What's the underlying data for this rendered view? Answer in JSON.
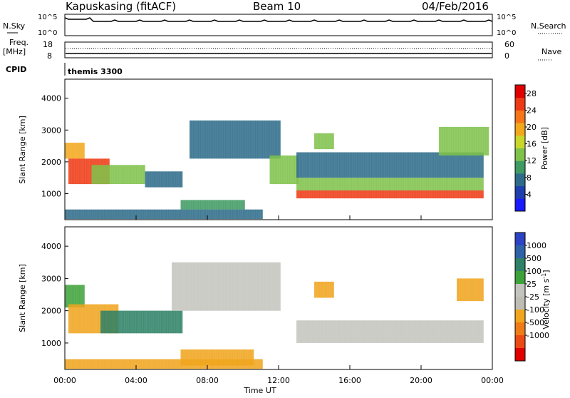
{
  "header": {
    "radar": "Kapuskasing (fitACF)",
    "beam": "Beam 10",
    "date": "04/Feb/2016"
  },
  "top_panels": {
    "nsky_label": "N.Sky",
    "nsky_ticks": [
      "10^5",
      "10^0"
    ],
    "nsearch_label": "N.Search",
    "nsearch_ticks": [
      "10^5",
      "10^0"
    ],
    "freq_label_1": "Freq.",
    "freq_label_2": "[MHz]",
    "freq_ticks": [
      "18",
      "8"
    ],
    "nave_label": "Nave",
    "nave_ticks": [
      "60",
      "0"
    ],
    "cpid_label": "CPID",
    "cpid_value": "themis 3300"
  },
  "colors": {
    "power_scale": [
      "#1a1aff",
      "#1f3fae",
      "#2e6b8a",
      "#3f9a63",
      "#7fc24a",
      "#c9d62a",
      "#f2a81c",
      "#f57518",
      "#ee3a14",
      "#e00000"
    ],
    "velocity_scale": [
      "#2b43c4",
      "#2e62a8",
      "#2e8166",
      "#3ea23a",
      "#c4c4be",
      "#bdbdb6",
      "#f0a51d",
      "#ef7d17",
      "#ec4a14",
      "#e00000"
    ]
  },
  "chart_data": [
    {
      "type": "heatmap",
      "name": "Power",
      "ylabel": "Slant Range [km]",
      "yticks": [
        1000,
        2000,
        3000,
        4000
      ],
      "ylim": [
        180,
        4600
      ],
      "x_domain_hours": [
        0,
        24
      ],
      "colorbar_label": "Power [dB]",
      "colorbar_ticks": [
        4,
        8,
        12,
        16,
        20,
        24,
        28
      ],
      "colorbar_range": [
        0,
        30
      ],
      "regions": [
        {
          "t": [
            0.0,
            1.0
          ],
          "r": [
            2100,
            2600
          ],
          "v": 20
        },
        {
          "t": [
            0.2,
            2.5
          ],
          "r": [
            1300,
            2100
          ],
          "v": 26
        },
        {
          "t": [
            1.5,
            4.5
          ],
          "r": [
            1300,
            1900
          ],
          "v": 14
        },
        {
          "t": [
            4.5,
            6.5
          ],
          "r": [
            1200,
            1700
          ],
          "v": 8
        },
        {
          "t": [
            6.5,
            10.0
          ],
          "r": [
            500,
            800
          ],
          "v": 10
        },
        {
          "t": [
            7.0,
            12.0
          ],
          "r": [
            2100,
            3300
          ],
          "v": 6
        },
        {
          "t": [
            11.5,
            13.0
          ],
          "r": [
            1300,
            2200
          ],
          "v": 14
        },
        {
          "t": [
            13.0,
            23.5
          ],
          "r": [
            850,
            1100
          ],
          "v": 26
        },
        {
          "t": [
            13.0,
            23.5
          ],
          "r": [
            1100,
            1500
          ],
          "v": 14
        },
        {
          "t": [
            13.0,
            23.5
          ],
          "r": [
            1500,
            2300
          ],
          "v": 8
        },
        {
          "t": [
            14.0,
            15.0
          ],
          "r": [
            2400,
            2900
          ],
          "v": 14
        },
        {
          "t": [
            21.0,
            23.8
          ],
          "r": [
            2200,
            3100
          ],
          "v": 12
        },
        {
          "t": [
            0.0,
            11.0
          ],
          "r": [
            200,
            500
          ],
          "v": 6
        }
      ]
    },
    {
      "type": "heatmap",
      "name": "Velocity",
      "ylabel": "Slant Range [km]",
      "yticks": [
        1000,
        2000,
        3000,
        4000
      ],
      "ylim": [
        180,
        4600
      ],
      "x_domain_hours": [
        0,
        24
      ],
      "xlabel": "Time UT",
      "xticks": [
        "00:00",
        "04:00",
        "08:00",
        "12:00",
        "16:00",
        "20:00",
        "00:00"
      ],
      "colorbar_label": "Velocity [m s^-1]",
      "colorbar_ticks": [
        1000,
        500,
        100,
        25,
        -25,
        -100,
        -500,
        -1000
      ],
      "regions": [
        {
          "t": [
            0.0,
            1.0
          ],
          "r": [
            2100,
            2800
          ],
          "v": 100
        },
        {
          "t": [
            0.2,
            3.0
          ],
          "r": [
            1300,
            2200
          ],
          "v": -300
        },
        {
          "t": [
            2.0,
            6.5
          ],
          "r": [
            1300,
            2000
          ],
          "v": 200
        },
        {
          "t": [
            6.5,
            10.5
          ],
          "r": [
            300,
            800
          ],
          "v": -200
        },
        {
          "t": [
            6.0,
            12.0
          ],
          "r": [
            2000,
            3500
          ],
          "v": 0
        },
        {
          "t": [
            13.0,
            23.5
          ],
          "r": [
            1000,
            1700
          ],
          "v": 0
        },
        {
          "t": [
            14.0,
            15.0
          ],
          "r": [
            2400,
            2900
          ],
          "v": -400
        },
        {
          "t": [
            22.0,
            23.5
          ],
          "r": [
            2300,
            3000
          ],
          "v": -200
        },
        {
          "t": [
            0.0,
            11.0
          ],
          "r": [
            200,
            500
          ],
          "v": -150
        }
      ]
    }
  ]
}
